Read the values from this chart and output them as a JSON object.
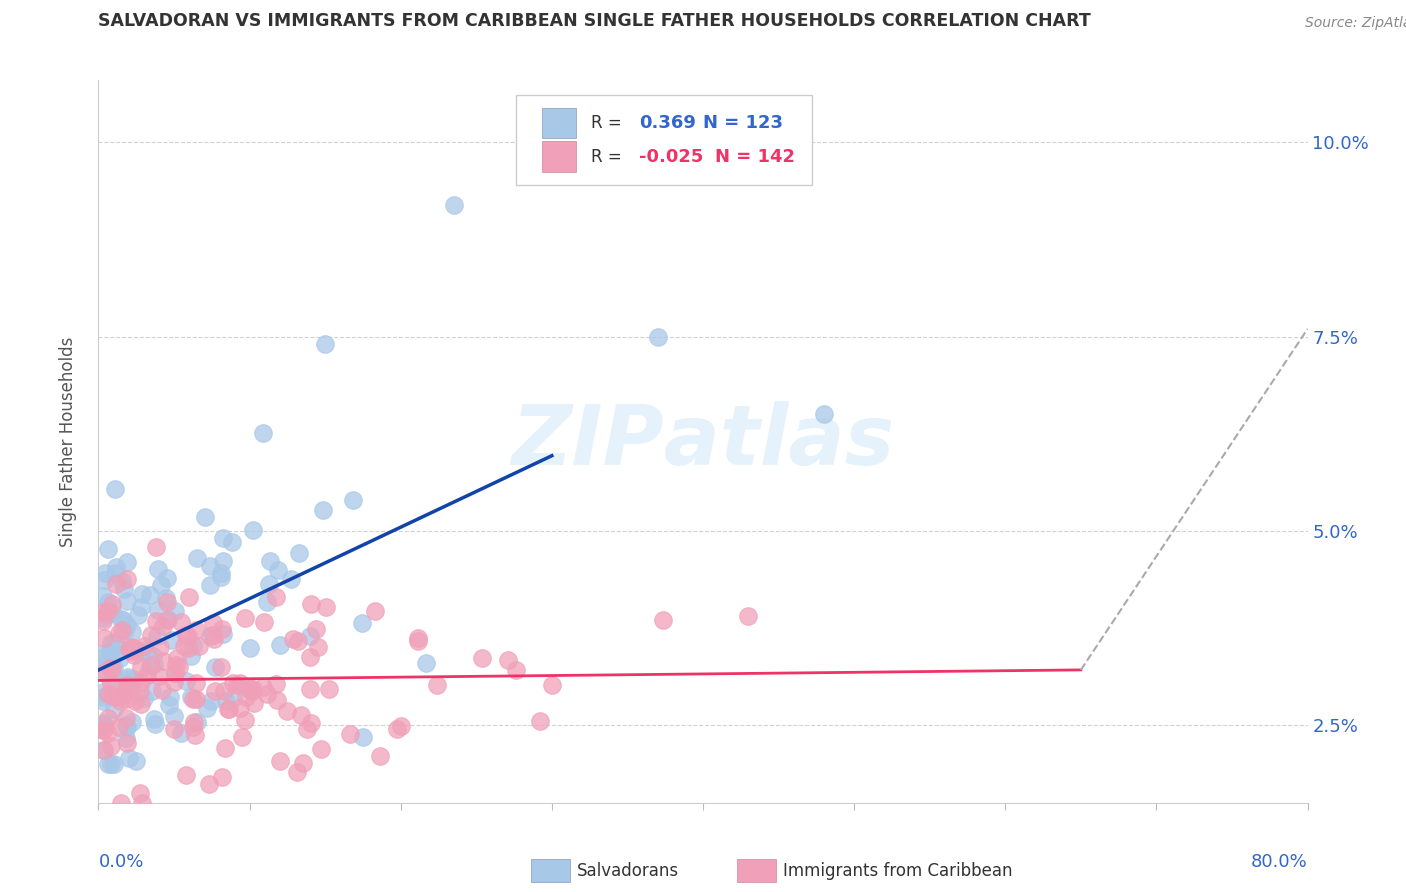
{
  "title": "SALVADORAN VS IMMIGRANTS FROM CARIBBEAN SINGLE FATHER HOUSEHOLDS CORRELATION CHART",
  "source": "Source: ZipAtlas.com",
  "ylabel": "Single Father Households",
  "xlim": [
    0,
    80
  ],
  "ylim": [
    1.5,
    10.8
  ],
  "yticks": [
    2.5,
    5.0,
    7.5,
    10.0
  ],
  "ytick_labels": [
    "2.5%",
    "5.0%",
    "7.5%",
    "10.0%"
  ],
  "r1": "0.369",
  "n1": "123",
  "r2": "-0.025",
  "n2": "142",
  "blue_scatter": "#A8C8E8",
  "pink_scatter": "#F0A0B8",
  "trend_blue": "#1144AA",
  "trend_pink": "#EE3366",
  "trend_dash": "#AAAAAA",
  "grid_color": "#CCCCCC",
  "bg_color": "#FFFFFF",
  "axis_label_color": "#3366CC",
  "text_color": "#333333",
  "source_color": "#888888",
  "watermark_text": "ZIPatlas",
  "watermark_color": "#D0E8F8"
}
